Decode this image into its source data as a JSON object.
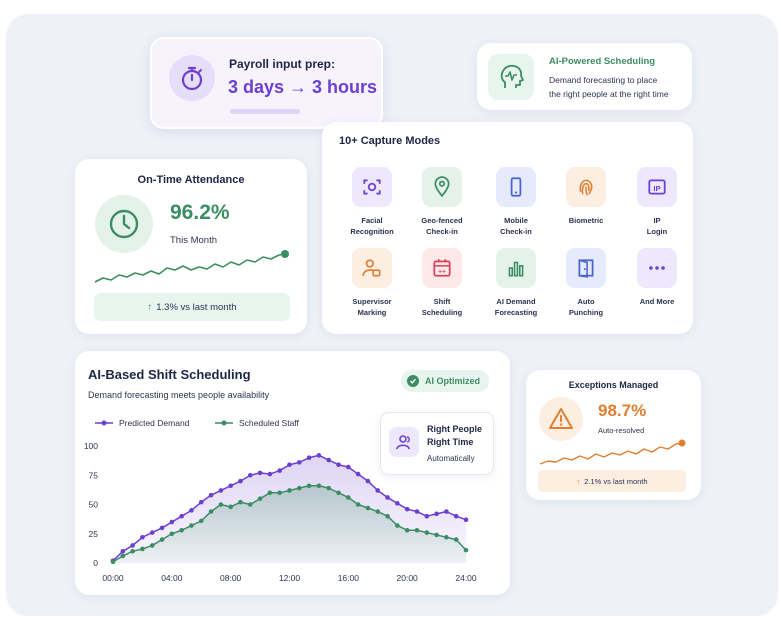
{
  "payroll": {
    "title": "Payroll input prep:",
    "value": "3 days → 3 hours",
    "icon": "stopwatch-icon"
  },
  "ai_scheduling": {
    "title": "AI-Powered Scheduling",
    "desc_line1": "Demand forecasting to place",
    "desc_line2": "the right people at the right time",
    "icon": "head-pulse-icon"
  },
  "capture": {
    "title": "10+ Capture Modes",
    "modes": [
      {
        "label": "Facial\nRecognition",
        "icon": "face-scan-icon",
        "bg": "#ede8fb",
        "color": "#6c3fd1"
      },
      {
        "label": "Geo-fenced\nCheck-in",
        "icon": "map-pin-icon",
        "bg": "#e4f2ea",
        "color": "#3c8d63"
      },
      {
        "label": "Mobile\nCheck-in",
        "icon": "mobile-icon",
        "bg": "#e5ebfb",
        "color": "#4a62cf"
      },
      {
        "label": "Biometric",
        "icon": "fingerprint-icon",
        "bg": "#fcefe2",
        "color": "#e07f31"
      },
      {
        "label": "IP\nLogin",
        "icon": "ip-icon",
        "bg": "#ede8fb",
        "color": "#6c3fd1"
      },
      {
        "label": "Supervisor\nMarking",
        "icon": "supervisor-icon",
        "bg": "#fcefe2",
        "color": "#e07f31"
      },
      {
        "label": "Shift\nScheduling",
        "icon": "calendar-icon",
        "bg": "#fde8ea",
        "color": "#d6455a"
      },
      {
        "label": "AI Demand\nForecasting",
        "icon": "bar-chart-icon",
        "bg": "#e4f2ea",
        "color": "#3c8d63"
      },
      {
        "label": "Auto\nPunching",
        "icon": "door-icon",
        "bg": "#e5ebfb",
        "color": "#4a62cf"
      },
      {
        "label": "And More",
        "icon": "more-icon",
        "bg": "#ede8fb",
        "color": "#6c3fd1"
      }
    ]
  },
  "attendance": {
    "title": "On-Time Attendance",
    "value": "96.2%",
    "period": "This Month",
    "change": "1.3% vs last month",
    "arrow": "↑",
    "icon": "clock-icon"
  },
  "shift_scheduling": {
    "title": "AI-Based Shift Scheduling",
    "subtitle": "Demand forecasting meets people availability",
    "badge": "AI Optimized",
    "right_people_line1": "Right People",
    "right_people_line2": "Right Time",
    "right_people_line3": "Automatically"
  },
  "exceptions": {
    "title": "Exceptions Managed",
    "value": "98.7%",
    "sub": "Auto-resolved",
    "change": "2.1% vs last month",
    "arrow": "↑",
    "icon": "warning-icon"
  },
  "chart_data": {
    "type": "line",
    "x": [
      "00:00",
      "00:40",
      "01:20",
      "02:00",
      "02:40",
      "03:20",
      "04:00",
      "04:40",
      "05:20",
      "06:00",
      "06:40",
      "07:20",
      "08:00",
      "08:40",
      "09:20",
      "10:00",
      "10:40",
      "11:20",
      "12:00",
      "12:40",
      "13:20",
      "14:00",
      "14:40",
      "15:20",
      "16:00",
      "16:40",
      "17:20",
      "18:00",
      "18:40",
      "19:20",
      "20:00",
      "20:40",
      "21:20",
      "22:00",
      "22:40",
      "23:20",
      "24:00"
    ],
    "xticks": [
      "00:00",
      "04:00",
      "08:00",
      "12:00",
      "16:00",
      "20:00",
      "24:00"
    ],
    "yticks": [
      "0",
      "25",
      "50",
      "75",
      "100"
    ],
    "ylim": [
      0,
      100
    ],
    "series": [
      {
        "name": "Predicted Demand",
        "color": "#6c3fd1",
        "values": [
          2,
          10,
          15,
          22,
          26,
          30,
          35,
          40,
          45,
          52,
          58,
          62,
          66,
          70,
          75,
          77,
          76,
          79,
          84,
          86,
          90,
          92,
          88,
          84,
          82,
          76,
          70,
          62,
          56,
          51,
          46,
          44,
          40,
          42,
          44,
          40,
          37
        ]
      },
      {
        "name": "Scheduled Staff",
        "color": "#3c8d63",
        "values": [
          1,
          6,
          10,
          12,
          15,
          20,
          25,
          28,
          32,
          36,
          44,
          50,
          48,
          52,
          50,
          55,
          60,
          60,
          62,
          64,
          66,
          66,
          64,
          60,
          56,
          50,
          47,
          44,
          40,
          32,
          28,
          28,
          26,
          24,
          22,
          20,
          11
        ]
      }
    ]
  }
}
